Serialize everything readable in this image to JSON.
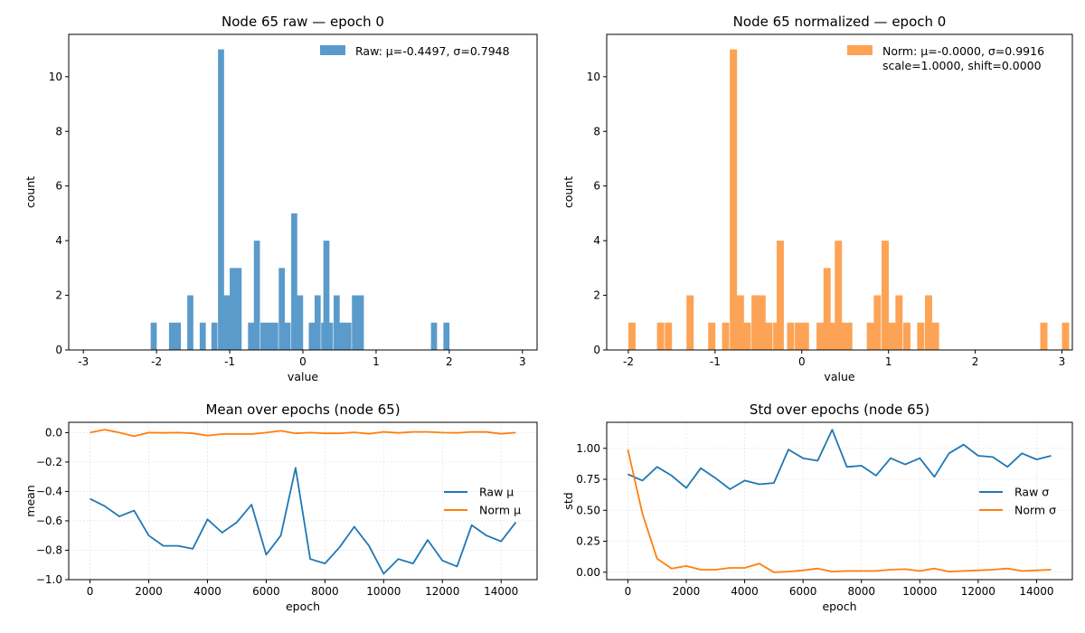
{
  "chart_data": [
    {
      "type": "bar",
      "title": "Node 65 raw — epoch 0",
      "xlabel": "value",
      "ylabel": "count",
      "xlim": [
        -3.2,
        3.2
      ],
      "ylim": [
        0,
        11.55
      ],
      "xticks": [
        "-3",
        "-2",
        "-1",
        "0",
        "1",
        "2",
        "3"
      ],
      "xtick_values": [
        -3,
        -2,
        -1,
        0,
        1,
        2,
        3
      ],
      "yticks": [
        "0",
        "2",
        "4",
        "6",
        "8",
        "10"
      ],
      "ytick_values": [
        0,
        2,
        4,
        6,
        8,
        10
      ],
      "bin_width": 0.083,
      "color": "#5a9bcb",
      "legend": {
        "position": "top-right",
        "entries": [
          "Raw: μ=-0.4497, σ=0.7948"
        ]
      },
      "bins": [
        [
          -2.08,
          1
        ],
        [
          -1.83,
          1
        ],
        [
          -1.75,
          1
        ],
        [
          -1.58,
          2
        ],
        [
          -1.41,
          1
        ],
        [
          -1.25,
          1
        ],
        [
          -1.16,
          11
        ],
        [
          -1.08,
          2
        ],
        [
          -1.0,
          3
        ],
        [
          -0.92,
          3
        ],
        [
          -0.75,
          1
        ],
        [
          -0.67,
          4
        ],
        [
          -0.58,
          1
        ],
        [
          -0.5,
          1
        ],
        [
          -0.42,
          1
        ],
        [
          -0.33,
          3
        ],
        [
          -0.25,
          1
        ],
        [
          -0.16,
          5
        ],
        [
          -0.08,
          2
        ],
        [
          0.08,
          1
        ],
        [
          0.16,
          2
        ],
        [
          0.25,
          1
        ],
        [
          0.28,
          4
        ],
        [
          0.33,
          1
        ],
        [
          0.42,
          2
        ],
        [
          0.5,
          1
        ],
        [
          0.58,
          1
        ],
        [
          0.67,
          2
        ],
        [
          0.75,
          2
        ],
        [
          1.75,
          1
        ],
        [
          1.92,
          1
        ]
      ]
    },
    {
      "type": "bar",
      "title": "Node 65 normalized — epoch 0",
      "xlabel": "value",
      "ylabel": "count",
      "xlim": [
        -2.25,
        3.12
      ],
      "ylim": [
        0,
        11.55
      ],
      "xticks": [
        "-2",
        "-1",
        "0",
        "1",
        "2",
        "3"
      ],
      "xtick_values": [
        -2,
        -1,
        0,
        1,
        2,
        3
      ],
      "yticks": [
        "0",
        "2",
        "4",
        "6",
        "8",
        "10"
      ],
      "ytick_values": [
        0,
        2,
        4,
        6,
        8,
        10
      ],
      "bin_width": 0.083,
      "color": "#fda356",
      "legend": {
        "position": "top-right",
        "entries": [
          "Norm: μ=-0.0000, σ=0.9916",
          "scale=1.0000, shift=0.0000"
        ]
      },
      "bins": [
        [
          -2.0,
          1
        ],
        [
          -1.67,
          1
        ],
        [
          -1.58,
          1
        ],
        [
          -1.33,
          2
        ],
        [
          -1.08,
          1
        ],
        [
          -0.92,
          1
        ],
        [
          -0.83,
          11
        ],
        [
          -0.75,
          2
        ],
        [
          -0.67,
          1
        ],
        [
          -0.58,
          2
        ],
        [
          -0.5,
          2
        ],
        [
          -0.42,
          1
        ],
        [
          -0.33,
          1
        ],
        [
          -0.29,
          4
        ],
        [
          -0.17,
          1
        ],
        [
          -0.08,
          1
        ],
        [
          0.0,
          1
        ],
        [
          0.17,
          1
        ],
        [
          0.25,
          3
        ],
        [
          0.33,
          1
        ],
        [
          0.38,
          4
        ],
        [
          0.42,
          1
        ],
        [
          0.5,
          1
        ],
        [
          0.75,
          1
        ],
        [
          0.83,
          2
        ],
        [
          0.92,
          4
        ],
        [
          1.0,
          1
        ],
        [
          1.08,
          2
        ],
        [
          1.17,
          1
        ],
        [
          1.33,
          1
        ],
        [
          1.42,
          2
        ],
        [
          1.5,
          1
        ],
        [
          2.75,
          1
        ],
        [
          3.0,
          1
        ]
      ]
    },
    {
      "type": "line",
      "title": "Mean over epochs (node 65)",
      "xlabel": "epoch",
      "ylabel": "mean",
      "xlim": [
        -725,
        15225
      ],
      "ylim": [
        -1.0,
        0.07
      ],
      "grid": true,
      "xticks": [
        "0",
        "2000",
        "4000",
        "6000",
        "8000",
        "10000",
        "12000",
        "14000"
      ],
      "xtick_values": [
        0,
        2000,
        4000,
        6000,
        8000,
        10000,
        12000,
        14000
      ],
      "yticks": [
        "0.0",
        "−0.2",
        "−0.4",
        "−0.6",
        "−0.8",
        "−1.0"
      ],
      "ytick_values": [
        0,
        -0.2,
        -0.4,
        -0.6,
        -0.8,
        -1.0
      ],
      "legend": {
        "position": "center-right"
      },
      "x": [
        0,
        500,
        1000,
        1500,
        2000,
        2500,
        3000,
        3500,
        4000,
        4500,
        5000,
        5500,
        6000,
        6500,
        7000,
        7500,
        8000,
        8500,
        9000,
        9500,
        10000,
        10500,
        11000,
        11500,
        12000,
        12500,
        13000,
        13500,
        14000,
        14500
      ],
      "series": [
        {
          "name": "Raw μ",
          "color": "#1f77b4",
          "values": [
            -0.45,
            -0.5,
            -0.57,
            -0.53,
            -0.7,
            -0.77,
            -0.77,
            -0.79,
            -0.59,
            -0.68,
            -0.61,
            -0.49,
            -0.83,
            -0.7,
            -0.24,
            -0.86,
            -0.89,
            -0.78,
            -0.64,
            -0.77,
            -0.96,
            -0.86,
            -0.89,
            -0.73,
            -0.87,
            -0.91,
            -0.63,
            -0.7,
            -0.74,
            -0.61
          ]
        },
        {
          "name": "Norm μ",
          "color": "#ff7f0e",
          "values": [
            0.0,
            0.02,
            0.0,
            -0.025,
            0.0,
            -0.002,
            0.0,
            -0.005,
            -0.02,
            -0.01,
            -0.01,
            -0.01,
            0.0,
            0.012,
            -0.005,
            0.0,
            -0.005,
            -0.005,
            0.002,
            -0.008,
            0.005,
            -0.002,
            0.005,
            0.005,
            0.0,
            -0.002,
            0.005,
            0.004,
            -0.008,
            0.0
          ]
        }
      ]
    },
    {
      "type": "line",
      "title": "Std over epochs (node 65)",
      "xlabel": "epoch",
      "ylabel": "std",
      "xlim": [
        -725,
        15225
      ],
      "ylim": [
        -0.06,
        1.21
      ],
      "grid": true,
      "xticks": [
        "0",
        "2000",
        "4000",
        "6000",
        "8000",
        "10000",
        "12000",
        "14000"
      ],
      "xtick_values": [
        0,
        2000,
        4000,
        6000,
        8000,
        10000,
        12000,
        14000
      ],
      "yticks": [
        "0.00",
        "0.25",
        "0.50",
        "0.75",
        "1.00"
      ],
      "ytick_values": [
        0,
        0.25,
        0.5,
        0.75,
        1.0
      ],
      "legend": {
        "position": "center-right"
      },
      "x": [
        0,
        500,
        1000,
        1500,
        2000,
        2500,
        3000,
        3500,
        4000,
        4500,
        5000,
        5500,
        6000,
        6500,
        7000,
        7500,
        8000,
        8500,
        9000,
        9500,
        10000,
        10500,
        11000,
        11500,
        12000,
        12500,
        13000,
        13500,
        14000,
        14500
      ],
      "series": [
        {
          "name": "Raw σ",
          "color": "#1f77b4",
          "values": [
            0.79,
            0.74,
            0.85,
            0.78,
            0.68,
            0.84,
            0.76,
            0.67,
            0.74,
            0.71,
            0.72,
            0.99,
            0.92,
            0.9,
            1.15,
            0.85,
            0.86,
            0.78,
            0.92,
            0.87,
            0.92,
            0.77,
            0.96,
            1.03,
            0.94,
            0.93,
            0.85,
            0.96,
            0.91,
            0.94
          ]
        },
        {
          "name": "Norm σ",
          "color": "#ff7f0e",
          "values": [
            0.99,
            0.47,
            0.11,
            0.03,
            0.05,
            0.02,
            0.02,
            0.035,
            0.035,
            0.07,
            0.0,
            0.005,
            0.015,
            0.03,
            0.005,
            0.01,
            0.01,
            0.01,
            0.02,
            0.025,
            0.01,
            0.03,
            0.005,
            0.01,
            0.015,
            0.02,
            0.03,
            0.01,
            0.015,
            0.02
          ]
        }
      ]
    }
  ]
}
